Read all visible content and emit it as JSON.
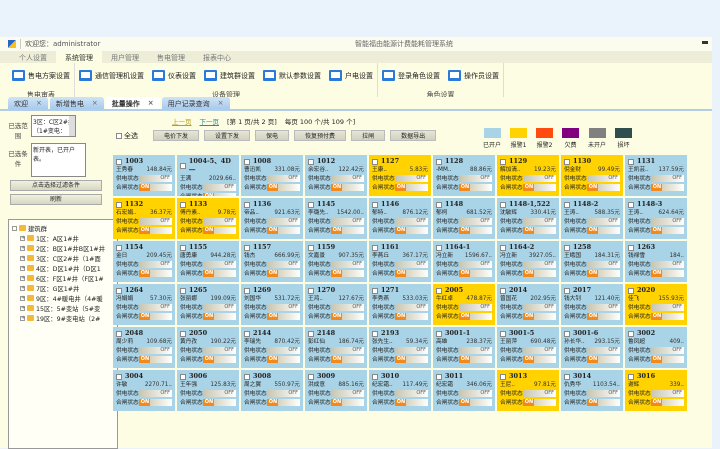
{
  "titlebar": {
    "welcome": "欢迎您：administrator",
    "system_title": "智能福由能源计费能耗管理系统"
  },
  "ribbon_tabs": [
    "个人设置",
    "系统管理",
    "用户管理",
    "售电管理",
    "报表中心"
  ],
  "ribbon_active": 1,
  "ribbon_groups": [
    {
      "label": "售电审表",
      "items": [
        "售电方案设置"
      ]
    },
    {
      "label": "设备管理",
      "items": [
        "通信管理机设置",
        "仪表设置",
        "建筑群设置",
        "默认参数设置",
        "户电设置"
      ]
    },
    {
      "label": "角色设置",
      "items": [
        "登录角色设置",
        "操作员设置"
      ]
    }
  ],
  "doc_tabs": [
    "欢迎",
    "新增售电",
    "批量操作",
    "用户记录查询"
  ],
  "doc_tab_active": 2,
  "doc_tab_close": "×",
  "left": {
    "scope_label": "已选范围",
    "scope_value": "3区：C区2#井（1#变电：2#变电，2#变电…",
    "cond_label": "已选条件",
    "cond_value": "新开表，已开户表。",
    "filter_button": "点击选择过滤条件",
    "refresh_button": "刷新"
  },
  "tree": {
    "root": "建筑群",
    "children": [
      "1区：A区1#井",
      "2区：B区1#井B区1#井",
      "3区：C区2#井（1#面",
      "4区：D区1#井（D区1",
      "6区：F区1#井（F区1#",
      "7区：G区1#井",
      "9区：4#暖电井（4#暖",
      "15区：5#变站（5#变",
      "19区：9#变电站（2#"
    ]
  },
  "pager": {
    "prev": "上一页",
    "next": "下一页",
    "page_info": "[第 1 页/共 2 页]",
    "per_page": "每页 100 个/共 109 个]"
  },
  "actions": {
    "select_all": "全选",
    "buttons": [
      "电价下发",
      "设置下发",
      "保电",
      "恢复预付费",
      "拉闸",
      "数据导出"
    ]
  },
  "legend": [
    {
      "label": "已开户",
      "color": "#a9d3e6"
    },
    {
      "label": "报警1",
      "color": "#ffd200"
    },
    {
      "label": "报警2",
      "color": "#ff4a10"
    },
    {
      "label": "欠费",
      "color": "#800080"
    },
    {
      "label": "未开户",
      "color": "#808080"
    },
    {
      "label": "损坏",
      "color": "#2f4f4f"
    }
  ],
  "cell_labels": {
    "power": "供电状态",
    "gate": "合闸状态",
    "off": "OFF",
    "on": "ON"
  },
  "meters": [
    {
      "no": "1003",
      "name": "王秀春",
      "amount": "148.84元",
      "status": "已开户"
    },
    {
      "no": "1004-5、4D一",
      "name": "王满",
      "amount": "2029.66..",
      "status": "已开户"
    },
    {
      "no": "1008",
      "name": "曹迅凯",
      "amount": "331.08元",
      "status": "已开户"
    },
    {
      "no": "1012",
      "name": "余宏谷..",
      "amount": "122.42元",
      "status": "已开户"
    },
    {
      "no": "1127",
      "name": "王康..",
      "amount": "5.83元",
      "status": "报警1"
    },
    {
      "no": "1128",
      "name": "-MM..",
      "amount": "88.86元",
      "status": "已开户"
    },
    {
      "no": "1129",
      "name": "解加清..",
      "amount": "19.23元",
      "status": "报警1"
    },
    {
      "no": "1130",
      "name": "倪金财",
      "amount": "99.49元",
      "status": "报警1"
    },
    {
      "no": "1131",
      "name": "王凯芸..",
      "amount": "137.59元",
      "status": "已开户"
    },
    {
      "no": "1132",
      "name": "石宏娟..",
      "amount": "36.37元",
      "status": "报警1"
    },
    {
      "no": "1133",
      "name": "傅丹素..",
      "amount": "9.78元",
      "status": "报警1"
    },
    {
      "no": "1136",
      "name": "帝品..",
      "amount": "921.63元",
      "status": "已开户"
    },
    {
      "no": "1145",
      "name": "李璐先..",
      "amount": "1542.00..",
      "status": "已开户"
    },
    {
      "no": "1146",
      "name": "郁特..",
      "amount": "876.12元",
      "status": "已开户"
    },
    {
      "no": "1148",
      "name": "郁柯",
      "amount": "681.52元",
      "status": "已开户"
    },
    {
      "no": "1148-1,522",
      "name": "沈敏辉",
      "amount": "330.41元",
      "status": "已开户"
    },
    {
      "no": "1148-2",
      "name": "王涛..",
      "amount": "588.35元",
      "status": "已开户"
    },
    {
      "no": "1148-3",
      "name": "王涛..",
      "amount": "624.64元",
      "status": "已开户"
    },
    {
      "no": "1154",
      "name": "金日",
      "amount": "209.45元",
      "status": "已开户"
    },
    {
      "no": "1155",
      "name": "唐勇康",
      "amount": "944.28元",
      "status": "已开户"
    },
    {
      "no": "1157",
      "name": "钱杰",
      "amount": "666.99元",
      "status": "已开户"
    },
    {
      "no": "1159",
      "name": "文嘉景",
      "amount": "907.35元",
      "status": "已开户"
    },
    {
      "no": "1161",
      "name": "李燕丘",
      "amount": "367.17元",
      "status": "已开户"
    },
    {
      "no": "1164-1",
      "name": "冯立新",
      "amount": "1596.67..",
      "status": "已开户"
    },
    {
      "no": "1164-2",
      "name": "冯立新",
      "amount": "3927.05..",
      "status": "已开户"
    },
    {
      "no": "1258",
      "name": "王峨国",
      "amount": "184.31元",
      "status": "已开户"
    },
    {
      "no": "1263",
      "name": "钱禄雪",
      "amount": "184..",
      "status": "已开户"
    },
    {
      "no": "1264",
      "name": "冯娟娟",
      "amount": "57.30元",
      "status": "已开户"
    },
    {
      "no": "1265",
      "name": "张丽娜",
      "amount": "199.09元",
      "status": "已开户"
    },
    {
      "no": "1269",
      "name": "刘国华",
      "amount": "531.72元",
      "status": "已开户"
    },
    {
      "no": "1270",
      "name": "王鸿..",
      "amount": "127.67元",
      "status": "已开户"
    },
    {
      "no": "1271",
      "name": "李秀燕",
      "amount": "533.03元",
      "status": "已开户"
    },
    {
      "no": "2005",
      "name": "牛红卓",
      "amount": "478.87元",
      "status": "报警1"
    },
    {
      "no": "2014",
      "name": "曾国花",
      "amount": "202.95元",
      "status": "已开户"
    },
    {
      "no": "2017",
      "name": "钱大钊",
      "amount": "121.40元",
      "status": "已开户"
    },
    {
      "no": "2020",
      "name": "佳飞",
      "amount": "155.93元",
      "status": "报警1"
    },
    {
      "no": "2048",
      "name": "周少莉",
      "amount": "109.68元",
      "status": "已开户"
    },
    {
      "no": "2050",
      "name": "黄丹孜",
      "amount": "190.22元",
      "status": "已开户"
    },
    {
      "no": "2144",
      "name": "李瑞先",
      "amount": "870.42元",
      "status": "已开户"
    },
    {
      "no": "2148",
      "name": "彭红仙",
      "amount": "186.74元",
      "status": "已开户"
    },
    {
      "no": "2193",
      "name": "张先生..",
      "amount": "59.34元",
      "status": "已开户"
    },
    {
      "no": "3001-1",
      "name": "高雄",
      "amount": "238.37元",
      "status": "已开户"
    },
    {
      "no": "3001-5",
      "name": "王丽萍",
      "amount": "690.48元",
      "status": "已开户"
    },
    {
      "no": "3001-6",
      "name": "孙长华..",
      "amount": "293.15元",
      "status": "已开户"
    },
    {
      "no": "3002",
      "name": "鲁凤超",
      "amount": "409..",
      "status": "已开户"
    },
    {
      "no": "3004",
      "name": "许敏",
      "amount": "2270.71..",
      "status": "已开户"
    },
    {
      "no": "3006",
      "name": "王年强",
      "amount": "125.83元",
      "status": "已开户"
    },
    {
      "no": "3008",
      "name": "周之翼",
      "amount": "550.97元",
      "status": "已开户"
    },
    {
      "no": "3009",
      "name": "洪成意",
      "amount": "885.16元",
      "status": "已开户"
    },
    {
      "no": "3010",
      "name": "纪宏霜..",
      "amount": "117.49元",
      "status": "已开户"
    },
    {
      "no": "3011",
      "name": "纪宏霜",
      "amount": "346.06元",
      "status": "已开户"
    },
    {
      "no": "3013",
      "name": "王尼..",
      "amount": "97.81元",
      "status": "报警1"
    },
    {
      "no": "3014",
      "name": "仇秀华",
      "amount": "1103.54..",
      "status": "已开户"
    },
    {
      "no": "3016",
      "name": "谢辉",
      "amount": "339..",
      "status": "报警1"
    }
  ]
}
